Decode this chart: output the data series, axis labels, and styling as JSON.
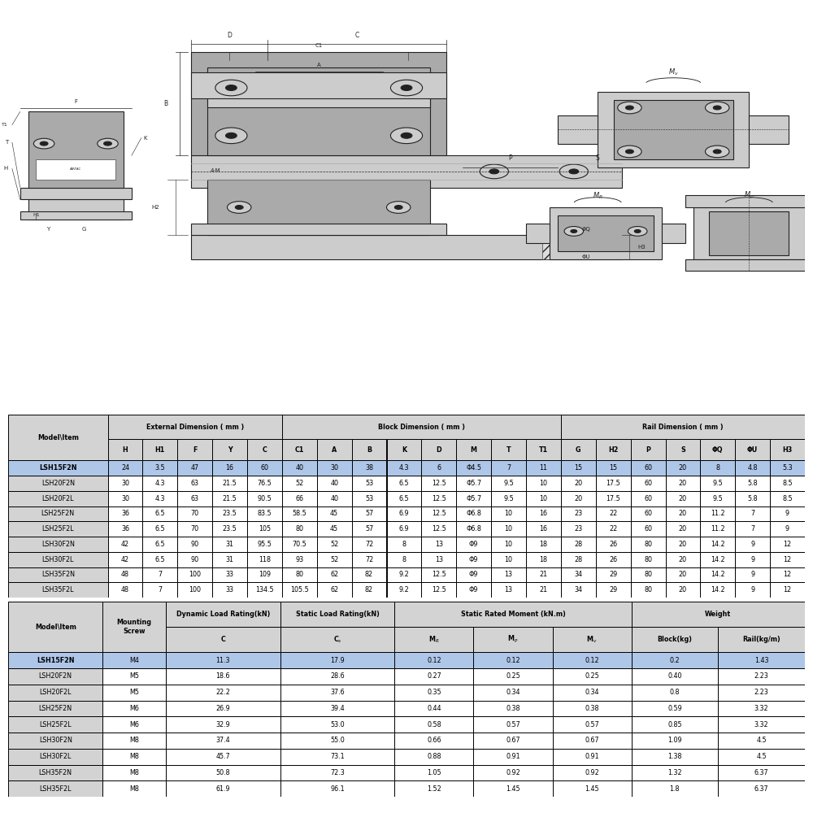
{
  "bg_color": "#ffffff",
  "table1_header_bg": "#d3d3d3",
  "table1_highlight_bg": "#aec6e8",
  "table2_header_bg": "#d3d3d3",
  "table2_highlight_bg": "#aec6e8",
  "table_border_color": "#000000",
  "table_text_color": "#000000",
  "table1_col_headers": [
    "H",
    "H1",
    "F",
    "Y",
    "C",
    "C1",
    "A",
    "B",
    "K",
    "D",
    "M",
    "T",
    "T1",
    "G",
    "H2",
    "P",
    "S",
    "ΦQ",
    "ΦU",
    "H3"
  ],
  "table1_rows": [
    [
      "LSH15F2N",
      "24",
      "3.5",
      "47",
      "16",
      "60",
      "40",
      "30",
      "38",
      "4.3",
      "6",
      "Φ4.5",
      "7",
      "11",
      "15",
      "15",
      "60",
      "20",
      "8",
      "4.8",
      "5.3"
    ],
    [
      "LSH20F2N",
      "30",
      "4.3",
      "63",
      "21.5",
      "76.5",
      "52",
      "40",
      "53",
      "6.5",
      "12.5",
      "Φ5.7",
      "9.5",
      "10",
      "20",
      "17.5",
      "60",
      "20",
      "9.5",
      "5.8",
      "8.5"
    ],
    [
      "LSH20F2L",
      "30",
      "4.3",
      "63",
      "21.5",
      "90.5",
      "66",
      "40",
      "53",
      "6.5",
      "12.5",
      "Φ5.7",
      "9.5",
      "10",
      "20",
      "17.5",
      "60",
      "20",
      "9.5",
      "5.8",
      "8.5"
    ],
    [
      "LSH25F2N",
      "36",
      "6.5",
      "70",
      "23.5",
      "83.5",
      "58.5",
      "45",
      "57",
      "6.9",
      "12.5",
      "Φ6.8",
      "10",
      "16",
      "23",
      "22",
      "60",
      "20",
      "11.2",
      "7",
      "9"
    ],
    [
      "LSH25F2L",
      "36",
      "6.5",
      "70",
      "23.5",
      "105",
      "80",
      "45",
      "57",
      "6.9",
      "12.5",
      "Φ6.8",
      "10",
      "16",
      "23",
      "22",
      "60",
      "20",
      "11.2",
      "7",
      "9"
    ],
    [
      "LSH30F2N",
      "42",
      "6.5",
      "90",
      "31",
      "95.5",
      "70.5",
      "52",
      "72",
      "8",
      "13",
      "Φ9",
      "10",
      "18",
      "28",
      "26",
      "80",
      "20",
      "14.2",
      "9",
      "12"
    ],
    [
      "LSH30F2L",
      "42",
      "6.5",
      "90",
      "31",
      "118",
      "93",
      "52",
      "72",
      "8",
      "13",
      "Φ9",
      "10",
      "18",
      "28",
      "26",
      "80",
      "20",
      "14.2",
      "9",
      "12"
    ],
    [
      "LSH35F2N",
      "48",
      "7",
      "100",
      "33",
      "109",
      "80",
      "62",
      "82",
      "9.2",
      "12.5",
      "Φ9",
      "13",
      "21",
      "34",
      "29",
      "80",
      "20",
      "14.2",
      "9",
      "12"
    ],
    [
      "LSH35F2L",
      "48",
      "7",
      "100",
      "33",
      "134.5",
      "105.5",
      "62",
      "82",
      "9.2",
      "12.5",
      "Φ9",
      "13",
      "21",
      "34",
      "29",
      "80",
      "20",
      "14.2",
      "9",
      "12"
    ]
  ],
  "table2_rows": [
    [
      "LSH15F2N",
      "M4",
      "11.3",
      "17.9",
      "0.12",
      "0.12",
      "0.12",
      "0.2",
      "1.43"
    ],
    [
      "LSH20F2N",
      "M5",
      "18.6",
      "28.6",
      "0.27",
      "0.25",
      "0.25",
      "0.40",
      "2.23"
    ],
    [
      "LSH20F2L",
      "M5",
      "22.2",
      "37.6",
      "0.35",
      "0.34",
      "0.34",
      "0.8",
      "2.23"
    ],
    [
      "LSH25F2N",
      "M6",
      "26.9",
      "39.4",
      "0.44",
      "0.38",
      "0.38",
      "0.59",
      "3.32"
    ],
    [
      "LSH25F2L",
      "M6",
      "32.9",
      "53.0",
      "0.58",
      "0.57",
      "0.57",
      "0.85",
      "3.32"
    ],
    [
      "LSH30F2N",
      "M8",
      "37.4",
      "55.0",
      "0.66",
      "0.67",
      "0.67",
      "1.09",
      "4.5"
    ],
    [
      "LSH30F2L",
      "M8",
      "45.7",
      "73.1",
      "0.88",
      "0.91",
      "0.91",
      "1.38",
      "4.5"
    ],
    [
      "LSH35F2N",
      "M8",
      "50.8",
      "72.3",
      "1.05",
      "0.92",
      "0.92",
      "1.32",
      "6.37"
    ],
    [
      "LSH35F2L",
      "M8",
      "61.9",
      "96.1",
      "1.52",
      "1.45",
      "1.45",
      "1.8",
      "6.37"
    ]
  ]
}
